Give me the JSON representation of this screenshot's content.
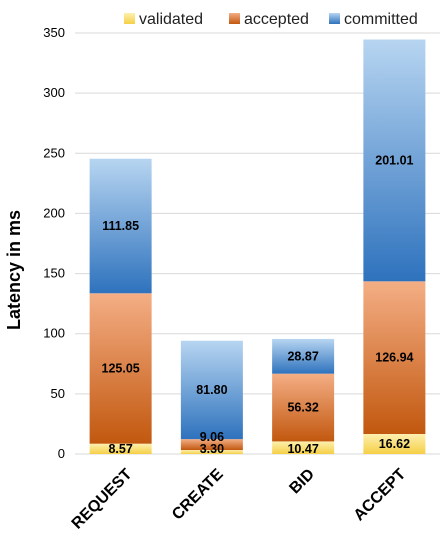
{
  "chart_data": {
    "type": "bar",
    "stacked": true,
    "categories": [
      "REQUEST",
      "CREATE",
      "BID",
      "ACCEPT"
    ],
    "series": [
      {
        "name": "validated",
        "values": [
          8.57,
          3.3,
          10.47,
          16.62
        ],
        "color": "#f5cf45",
        "color_light": "#fdf0b0"
      },
      {
        "name": "accepted",
        "values": [
          125.05,
          9.06,
          56.32,
          126.94
        ],
        "color": "#c2580f",
        "color_light": "#f4ae85"
      },
      {
        "name": "committed",
        "values": [
          111.85,
          81.8,
          28.87,
          201.01
        ],
        "color": "#2e72bd",
        "color_light": "#b7d5f1"
      }
    ],
    "data_labels": [
      [
        "8.57",
        "3.30",
        "10.47",
        "16.62"
      ],
      [
        "125.05",
        "9.06",
        "56.32",
        "126.94"
      ],
      [
        "111.85",
        "81.80",
        "28.87",
        "201.01"
      ]
    ],
    "ylabel": "Latency in ms",
    "xlabel": "",
    "ylim": [
      0,
      350
    ],
    "yticks": [
      0,
      50,
      100,
      150,
      200,
      250,
      300,
      350
    ],
    "grid": true,
    "legend": "top-right"
  }
}
